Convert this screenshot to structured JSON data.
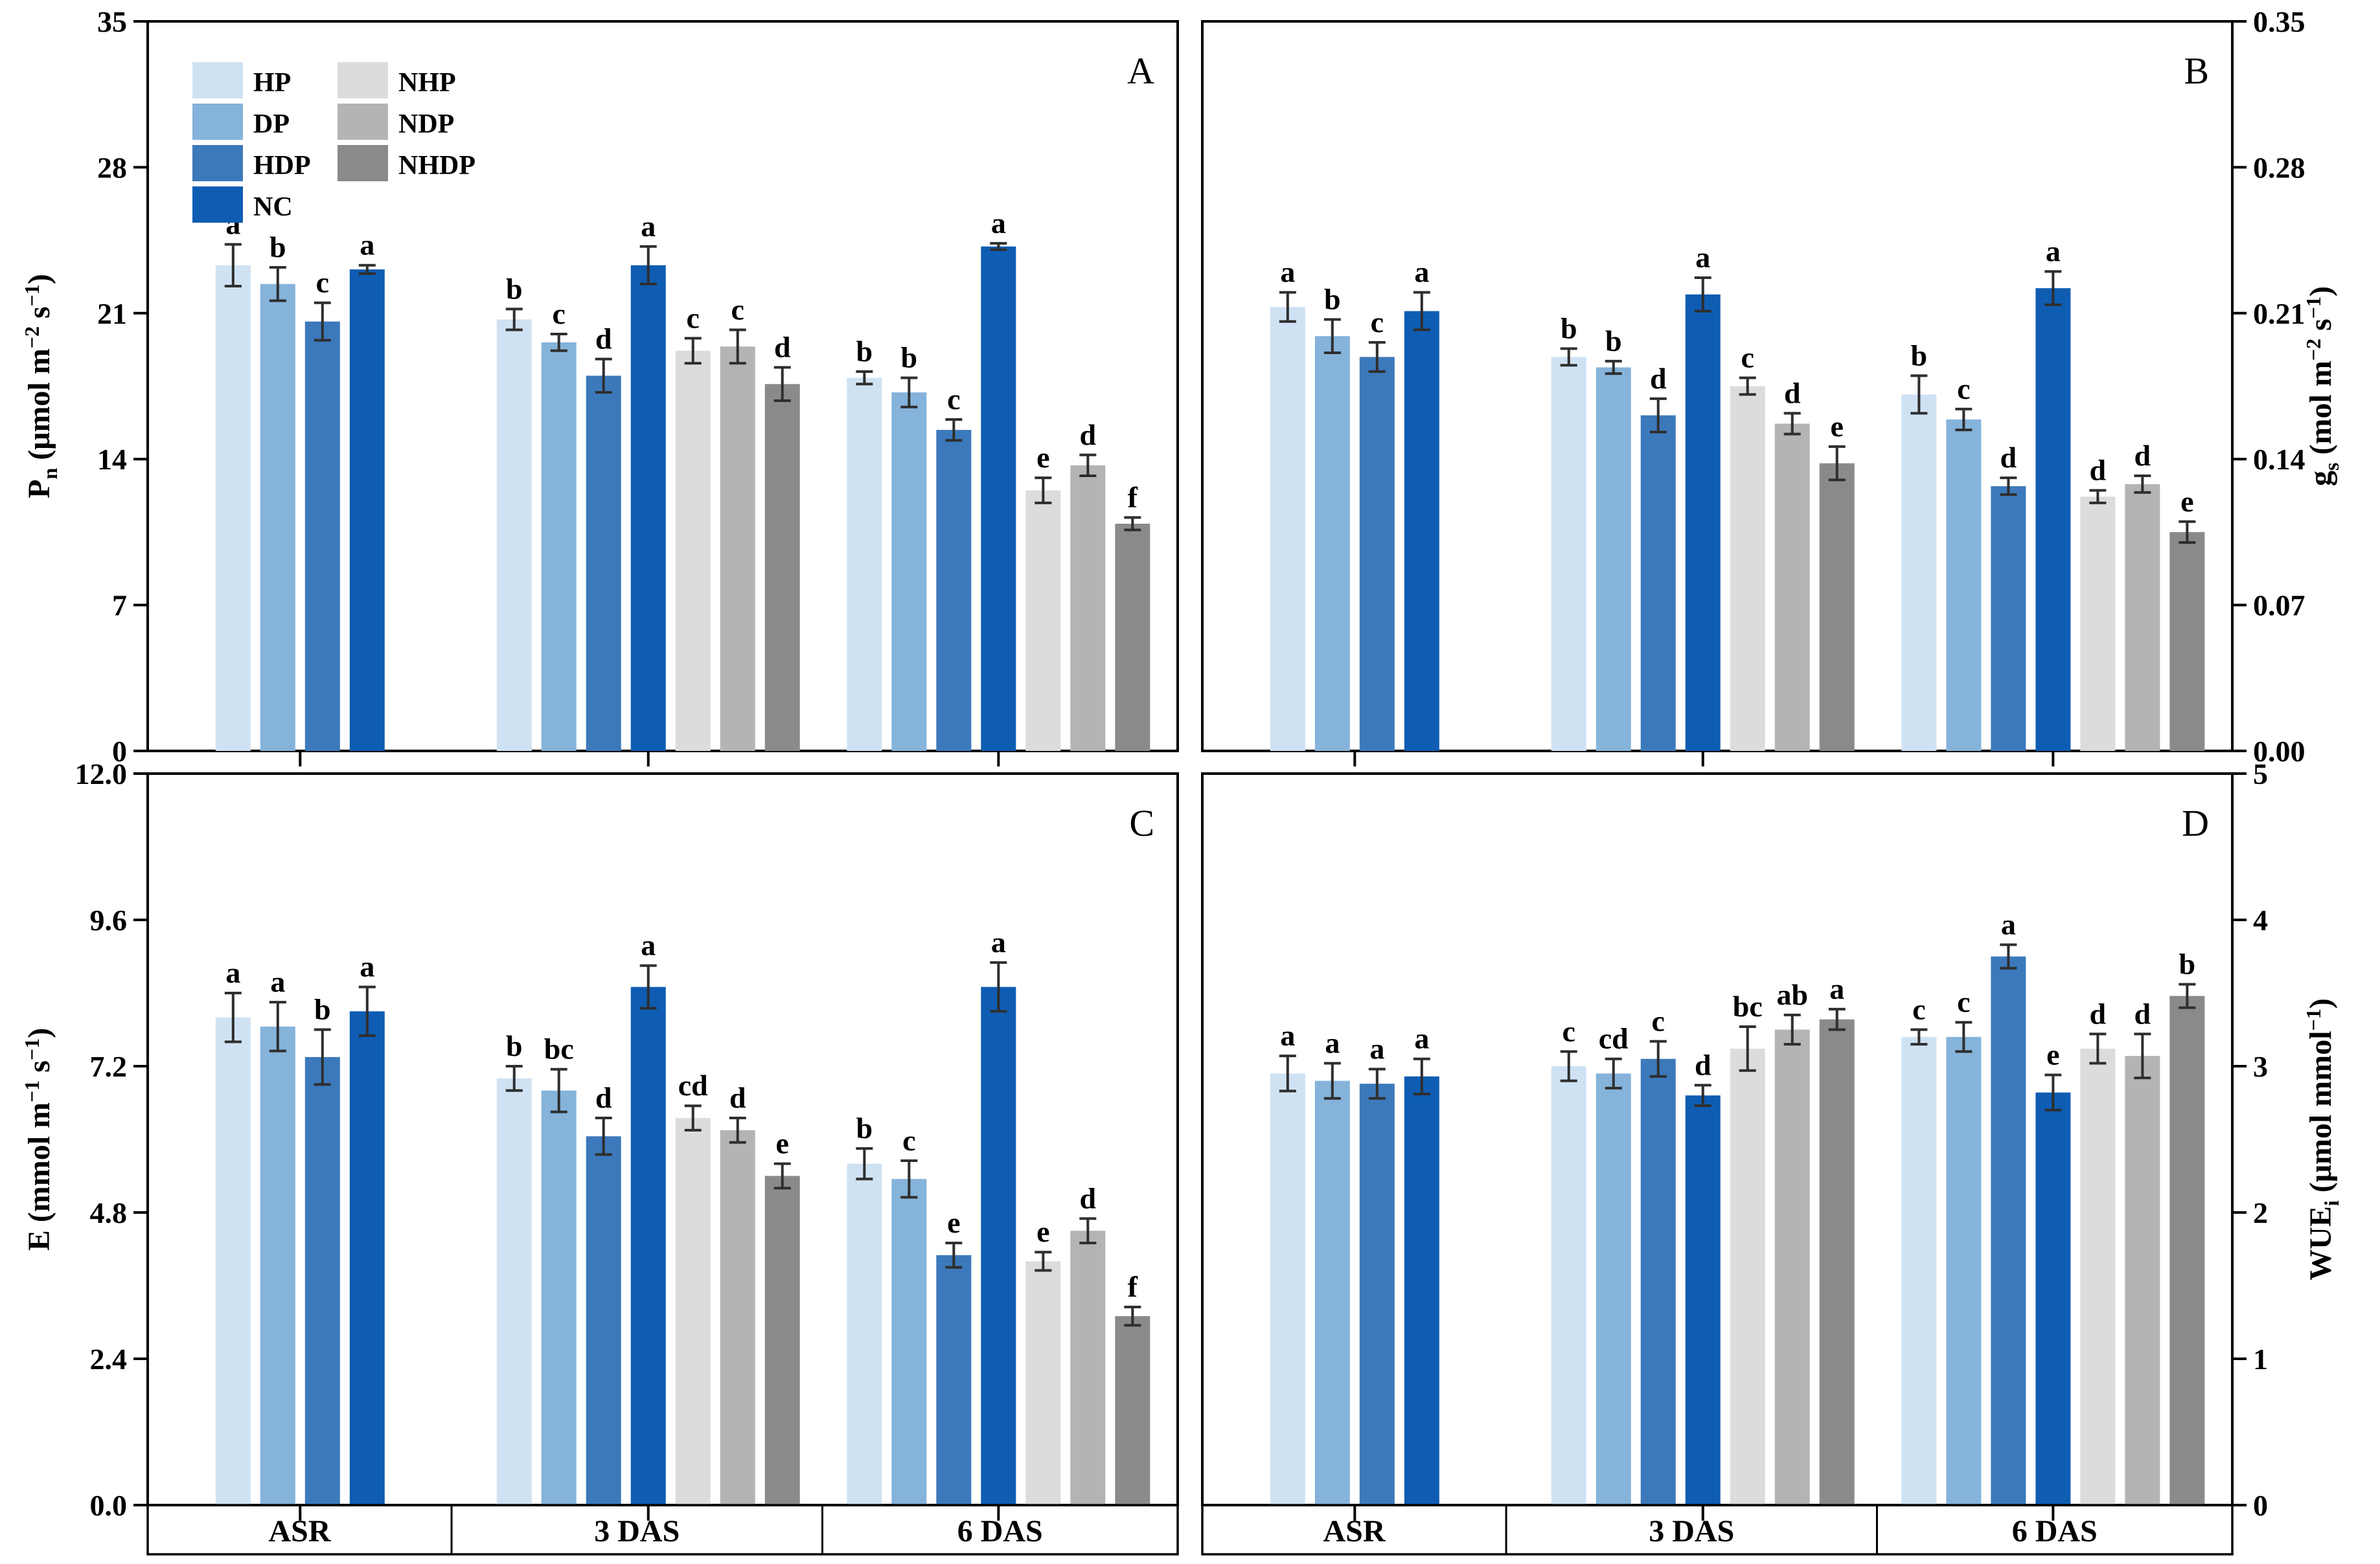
{
  "figure_title": "",
  "legend": {
    "columns": [
      [
        "HP",
        "DP",
        "HDP",
        "NC"
      ],
      [
        "NHP",
        "NDP",
        "NHDP"
      ]
    ]
  },
  "colors": {
    "HP": "#cfe2f3",
    "DP": "#85b3da",
    "HDP": "#3c79bb",
    "NC": "#0f5db3",
    "NHP": "#dcdcdc",
    "NDP": "#b4b4b4",
    "NHDP": "#8a8a8a",
    "error_bar": "#2e2e2e",
    "axis": "#000000"
  },
  "categories": [
    "ASR",
    "3 DAS",
    "6 DAS"
  ],
  "series": [
    "HP",
    "DP",
    "HDP",
    "NC",
    "NHP",
    "NDP",
    "NHDP"
  ],
  "chart_data": [
    {
      "id": "A",
      "type": "bar",
      "panel_label": "A",
      "axis_side": "left",
      "ylabel": "Pn (μmol m−2 s−1)",
      "ylabel_parts": [
        {
          "t": "P"
        },
        {
          "t": "n",
          "s": "sub"
        },
        {
          "t": " (μmol m"
        },
        {
          "t": "−2",
          "s": "sup"
        },
        {
          "t": " s"
        },
        {
          "t": "−1",
          "s": "sup"
        },
        {
          "t": ")"
        }
      ],
      "ymax": 35,
      "yticks": [
        {
          "v": 0,
          "t": "0"
        },
        {
          "v": 7,
          "t": "7"
        },
        {
          "v": 14,
          "t": "14"
        },
        {
          "v": 21,
          "t": "21"
        },
        {
          "v": 28,
          "t": "28"
        },
        {
          "v": 35,
          "t": "35"
        }
      ],
      "show_category_labels": false,
      "has_legend": true,
      "groups": [
        {
          "category": "ASR",
          "series": [
            "HP",
            "DP",
            "HDP",
            "NC"
          ],
          "values": [
            23.3,
            22.4,
            20.6,
            23.1
          ],
          "errors": [
            1.0,
            0.8,
            0.9,
            0.2
          ],
          "letters": [
            "a",
            "b",
            "c",
            "a"
          ]
        },
        {
          "category": "3 DAS",
          "series": [
            "HP",
            "DP",
            "HDP",
            "NC",
            "NHP",
            "NDP",
            "NHDP"
          ],
          "values": [
            20.7,
            19.6,
            18.0,
            23.3,
            19.2,
            19.4,
            17.6
          ],
          "errors": [
            0.5,
            0.4,
            0.8,
            0.9,
            0.6,
            0.8,
            0.8
          ],
          "letters": [
            "b",
            "c",
            "d",
            "a",
            "c",
            "c",
            "d"
          ]
        },
        {
          "category": "6 DAS",
          "series": [
            "HP",
            "DP",
            "HDP",
            "NC",
            "NHP",
            "NDP",
            "NHDP"
          ],
          "values": [
            17.9,
            17.2,
            15.4,
            24.2,
            12.5,
            13.7,
            10.9
          ],
          "errors": [
            0.3,
            0.7,
            0.5,
            0.15,
            0.6,
            0.5,
            0.3
          ],
          "letters": [
            "b",
            "b",
            "c",
            "a",
            "e",
            "d",
            "f"
          ]
        }
      ]
    },
    {
      "id": "B",
      "type": "bar",
      "panel_label": "B",
      "axis_side": "right",
      "ylabel": "gs (mol m−2 s−1)",
      "ylabel_parts": [
        {
          "t": "g"
        },
        {
          "t": "s",
          "s": "sub"
        },
        {
          "t": " (mol m"
        },
        {
          "t": "−2",
          "s": "sup"
        },
        {
          "t": " s"
        },
        {
          "t": "−1",
          "s": "sup"
        },
        {
          "t": ")"
        }
      ],
      "ymax": 0.35,
      "yticks": [
        {
          "v": 0,
          "t": "0.00"
        },
        {
          "v": 0.07,
          "t": "0.07"
        },
        {
          "v": 0.14,
          "t": "0.14"
        },
        {
          "v": 0.21,
          "t": "0.21"
        },
        {
          "v": 0.28,
          "t": "0.28"
        },
        {
          "v": 0.35,
          "t": "0.35"
        }
      ],
      "show_category_labels": false,
      "has_legend": false,
      "groups": [
        {
          "category": "ASR",
          "series": [
            "HP",
            "DP",
            "HDP",
            "NC"
          ],
          "values": [
            0.213,
            0.199,
            0.189,
            0.211
          ],
          "errors": [
            0.007,
            0.008,
            0.007,
            0.009
          ],
          "letters": [
            "a",
            "b",
            "c",
            "a"
          ]
        },
        {
          "category": "3 DAS",
          "series": [
            "HP",
            "DP",
            "HDP",
            "NC",
            "NHP",
            "NDP",
            "NHDP"
          ],
          "values": [
            0.189,
            0.184,
            0.161,
            0.219,
            0.175,
            0.157,
            0.138
          ],
          "errors": [
            0.004,
            0.003,
            0.008,
            0.008,
            0.004,
            0.005,
            0.008
          ],
          "letters": [
            "b",
            "b",
            "d",
            "a",
            "c",
            "d",
            "e"
          ]
        },
        {
          "category": "6 DAS",
          "series": [
            "HP",
            "DP",
            "HDP",
            "NC",
            "NHP",
            "NDP",
            "NHDP"
          ],
          "values": [
            0.171,
            0.159,
            0.127,
            0.222,
            0.122,
            0.128,
            0.105
          ],
          "errors": [
            0.009,
            0.005,
            0.004,
            0.008,
            0.003,
            0.004,
            0.005
          ],
          "letters": [
            "b",
            "c",
            "d",
            "a",
            "d",
            "d",
            "e"
          ]
        }
      ]
    },
    {
      "id": "C",
      "type": "bar",
      "panel_label": "C",
      "axis_side": "left",
      "ylabel": "E (mmol m−1 s−1)",
      "ylabel_parts": [
        {
          "t": "E (mmol m"
        },
        {
          "t": "−1",
          "s": "sup"
        },
        {
          "t": " s"
        },
        {
          "t": "−1",
          "s": "sup"
        },
        {
          "t": ")"
        }
      ],
      "ymax": 12,
      "yticks": [
        {
          "v": 0,
          "t": "0.0"
        },
        {
          "v": 2.4,
          "t": "2.4"
        },
        {
          "v": 4.8,
          "t": "4.8"
        },
        {
          "v": 7.2,
          "t": "7.2"
        },
        {
          "v": 9.6,
          "t": "9.6"
        },
        {
          "v": 12,
          "t": "12.0"
        }
      ],
      "show_category_labels": true,
      "has_legend": false,
      "groups": [
        {
          "category": "ASR",
          "series": [
            "HP",
            "DP",
            "HDP",
            "NC"
          ],
          "values": [
            8.0,
            7.85,
            7.35,
            8.1
          ],
          "errors": [
            0.4,
            0.4,
            0.45,
            0.4
          ],
          "letters": [
            "a",
            "a",
            "b",
            "a"
          ]
        },
        {
          "category": "3 DAS",
          "series": [
            "HP",
            "DP",
            "HDP",
            "NC",
            "NHP",
            "NDP",
            "NHDP"
          ],
          "values": [
            7.0,
            6.8,
            6.05,
            8.5,
            6.35,
            6.15,
            5.4
          ],
          "errors": [
            0.2,
            0.35,
            0.3,
            0.35,
            0.2,
            0.2,
            0.2
          ],
          "letters": [
            "b",
            "bc",
            "d",
            "a",
            "cd",
            "d",
            "e"
          ]
        },
        {
          "category": "6 DAS",
          "series": [
            "HP",
            "DP",
            "HDP",
            "NC",
            "NHP",
            "NDP",
            "NHDP"
          ],
          "values": [
            5.6,
            5.35,
            4.1,
            8.5,
            4.0,
            4.5,
            3.1
          ],
          "errors": [
            0.25,
            0.3,
            0.2,
            0.4,
            0.15,
            0.2,
            0.15
          ],
          "letters": [
            "b",
            "c",
            "e",
            "a",
            "e",
            "d",
            "f"
          ]
        }
      ]
    },
    {
      "id": "D",
      "type": "bar",
      "panel_label": "D",
      "axis_side": "right",
      "ylabel": "WUEi (μmol mmol−1)",
      "ylabel_parts": [
        {
          "t": "WUE"
        },
        {
          "t": "i",
          "s": "sub"
        },
        {
          "t": " (μmol mmol"
        },
        {
          "t": "−1",
          "s": "sup"
        },
        {
          "t": ")"
        }
      ],
      "ymax": 5,
      "yticks": [
        {
          "v": 0,
          "t": "0"
        },
        {
          "v": 1,
          "t": "1"
        },
        {
          "v": 2,
          "t": "2"
        },
        {
          "v": 3,
          "t": "3"
        },
        {
          "v": 4,
          "t": "4"
        },
        {
          "v": 5,
          "t": "5"
        }
      ],
      "show_category_labels": true,
      "has_legend": false,
      "groups": [
        {
          "category": "ASR",
          "series": [
            "HP",
            "DP",
            "HDP",
            "NC"
          ],
          "values": [
            2.95,
            2.9,
            2.88,
            2.93
          ],
          "errors": [
            0.12,
            0.12,
            0.1,
            0.12
          ],
          "letters": [
            "a",
            "a",
            "a",
            "a"
          ]
        },
        {
          "category": "3 DAS",
          "series": [
            "HP",
            "DP",
            "HDP",
            "NC",
            "NHP",
            "NDP",
            "NHDP"
          ],
          "values": [
            3.0,
            2.95,
            3.05,
            2.8,
            3.12,
            3.25,
            3.32
          ],
          "errors": [
            0.1,
            0.1,
            0.12,
            0.07,
            0.15,
            0.1,
            0.07
          ],
          "letters": [
            "c",
            "cd",
            "c",
            "d",
            "bc",
            "ab",
            "a"
          ]
        },
        {
          "category": "6 DAS",
          "series": [
            "HP",
            "DP",
            "HDP",
            "NC",
            "NHP",
            "NDP",
            "NHDP"
          ],
          "values": [
            3.2,
            3.2,
            3.75,
            2.82,
            3.12,
            3.07,
            3.48
          ],
          "errors": [
            0.05,
            0.1,
            0.08,
            0.12,
            0.1,
            0.15,
            0.08
          ],
          "letters": [
            "c",
            "c",
            "a",
            "e",
            "d",
            "d",
            "b"
          ]
        }
      ]
    }
  ]
}
